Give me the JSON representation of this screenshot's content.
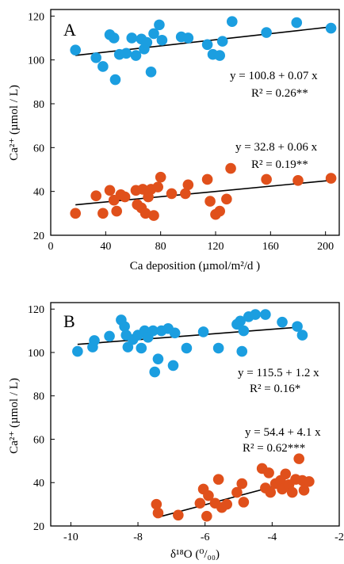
{
  "chart_data": [
    {
      "type": "scatter",
      "panel_label": "A",
      "xlabel": "Ca deposition (µmol/m²/d )",
      "ylabel": "Ca²⁺ (µmol / L)",
      "xlim": [
        0,
        210
      ],
      "ylim": [
        20,
        123
      ],
      "xticks": [
        "0",
        "40",
        "80",
        "120",
        "160",
        "200"
      ],
      "yticks": [
        "20",
        "40",
        "60",
        "80",
        "100",
        "120"
      ],
      "colors": {
        "blue": "#1b9ee0",
        "orange": "#e0501b"
      },
      "series": [
        {
          "color": "blue",
          "points": [
            [
              18,
              104.5
            ],
            [
              33,
              101
            ],
            [
              38,
              97
            ],
            [
              43,
              111.5
            ],
            [
              46,
              110
            ],
            [
              47,
              91
            ],
            [
              50,
              102.5
            ],
            [
              55,
              103
            ],
            [
              59,
              110
            ],
            [
              62,
              102
            ],
            [
              66,
              109.5
            ],
            [
              68,
              105
            ],
            [
              70,
              108
            ],
            [
              73,
              94.5
            ],
            [
              75,
              112
            ],
            [
              79,
              116
            ],
            [
              81,
              109
            ],
            [
              95,
              110.5
            ],
            [
              100,
              110
            ],
            [
              114,
              107
            ],
            [
              118,
              102.5
            ],
            [
              123,
              102
            ],
            [
              125,
              108.5
            ],
            [
              132,
              117.5
            ],
            [
              157,
              112.5
            ],
            [
              179,
              117
            ],
            [
              204,
              114.5
            ]
          ],
          "fit": {
            "intercept": 100.8,
            "slope": 0.07
          }
        },
        {
          "color": "orange",
          "points": [
            [
              18,
              30
            ],
            [
              33,
              38
            ],
            [
              38,
              30
            ],
            [
              43,
              40.5
            ],
            [
              46,
              36
            ],
            [
              48,
              31
            ],
            [
              51,
              38.5
            ],
            [
              54,
              37.5
            ],
            [
              62,
              40.5
            ],
            [
              63,
              34
            ],
            [
              66,
              32.5
            ],
            [
              67,
              41
            ],
            [
              69,
              30
            ],
            [
              71,
              37.5
            ],
            [
              73,
              41
            ],
            [
              75,
              29
            ],
            [
              78,
              42
            ],
            [
              80,
              46.5
            ],
            [
              88,
              39
            ],
            [
              98,
              39
            ],
            [
              100,
              43
            ],
            [
              114,
              45.5
            ],
            [
              116,
              35.5
            ],
            [
              120,
              29.5
            ],
            [
              123,
              31
            ],
            [
              128,
              36.5
            ],
            [
              131,
              50.5
            ],
            [
              157,
              45.5
            ],
            [
              180,
              45
            ],
            [
              204,
              46
            ]
          ],
          "fit": {
            "intercept": 32.8,
            "slope": 0.06
          }
        }
      ],
      "annotations": [
        {
          "line1": "y = 100.8 + 0.07 x",
          "line2": "R² = 0.26**"
        },
        {
          "line1": "y = 32.8 + 0.06 x",
          "line2": "R² = 0.19**"
        }
      ]
    },
    {
      "type": "scatter",
      "panel_label": "B",
      "xlabel": "δ¹⁸O (⁰/₀₀)",
      "ylabel": "Ca²⁺ (µmol / L)",
      "xlim": [
        -10.6,
        -2
      ],
      "ylim": [
        20,
        123
      ],
      "xticks": [
        "-10",
        "-8",
        "-6",
        "-4",
        "-2"
      ],
      "yticks": [
        "20",
        "40",
        "60",
        "80",
        "100",
        "120"
      ],
      "colors": {
        "blue": "#1b9ee0",
        "orange": "#e0501b"
      },
      "series": [
        {
          "color": "blue",
          "points": [
            [
              -9.8,
              100.5
            ],
            [
              -9.35,
              102.5
            ],
            [
              -9.3,
              105.5
            ],
            [
              -8.85,
              107.5
            ],
            [
              -8.5,
              115
            ],
            [
              -8.4,
              112
            ],
            [
              -8.35,
              108
            ],
            [
              -8.3,
              102.5
            ],
            [
              -8.15,
              106
            ],
            [
              -8.0,
              108
            ],
            [
              -7.9,
              102
            ],
            [
              -7.8,
              110
            ],
            [
              -7.7,
              107
            ],
            [
              -7.55,
              110
            ],
            [
              -7.5,
              91
            ],
            [
              -7.4,
              97
            ],
            [
              -7.3,
              110
            ],
            [
              -7.1,
              111
            ],
            [
              -6.95,
              94
            ],
            [
              -6.9,
              109
            ],
            [
              -6.55,
              102
            ],
            [
              -6.05,
              109.5
            ],
            [
              -5.6,
              102
            ],
            [
              -5.05,
              113
            ],
            [
              -4.95,
              114.5
            ],
            [
              -4.9,
              100.5
            ],
            [
              -4.85,
              110
            ],
            [
              -4.7,
              116.5
            ],
            [
              -4.5,
              117.5
            ],
            [
              -4.2,
              117.5
            ],
            [
              -3.7,
              114
            ],
            [
              -3.25,
              112
            ],
            [
              -3.1,
              108
            ]
          ],
          "fit": {
            "intercept": 115.5,
            "slope": 1.2
          }
        },
        {
          "color": "orange",
          "points": [
            [
              -7.45,
              30
            ],
            [
              -7.4,
              26
            ],
            [
              -6.8,
              25
            ],
            [
              -6.15,
              30.5
            ],
            [
              -6.05,
              37
            ],
            [
              -5.95,
              24.5
            ],
            [
              -5.9,
              34
            ],
            [
              -5.7,
              30.5
            ],
            [
              -5.6,
              41.5
            ],
            [
              -5.5,
              28.5
            ],
            [
              -5.35,
              30
            ],
            [
              -5.05,
              35.5
            ],
            [
              -4.9,
              39.5
            ],
            [
              -4.85,
              31
            ],
            [
              -4.3,
              46.5
            ],
            [
              -4.2,
              37.5
            ],
            [
              -4.1,
              44.5
            ],
            [
              -4.05,
              35.5
            ],
            [
              -3.9,
              39.5
            ],
            [
              -3.75,
              41
            ],
            [
              -3.7,
              37
            ],
            [
              -3.6,
              44
            ],
            [
              -3.5,
              39
            ],
            [
              -3.4,
              35.5
            ],
            [
              -3.3,
              41.5
            ],
            [
              -3.2,
              51
            ],
            [
              -3.1,
              41
            ],
            [
              -3.05,
              36.5
            ],
            [
              -2.9,
              40.5
            ]
          ],
          "fit": {
            "intercept": 54.4,
            "slope": 4.1
          }
        }
      ],
      "annotations": [
        {
          "line1": "y = 115.5 + 1.2 x",
          "line2": "R² = 0.16*"
        },
        {
          "line1": "y = 54.4 + 4.1 x",
          "line2": "R² = 0.62***"
        }
      ]
    }
  ]
}
